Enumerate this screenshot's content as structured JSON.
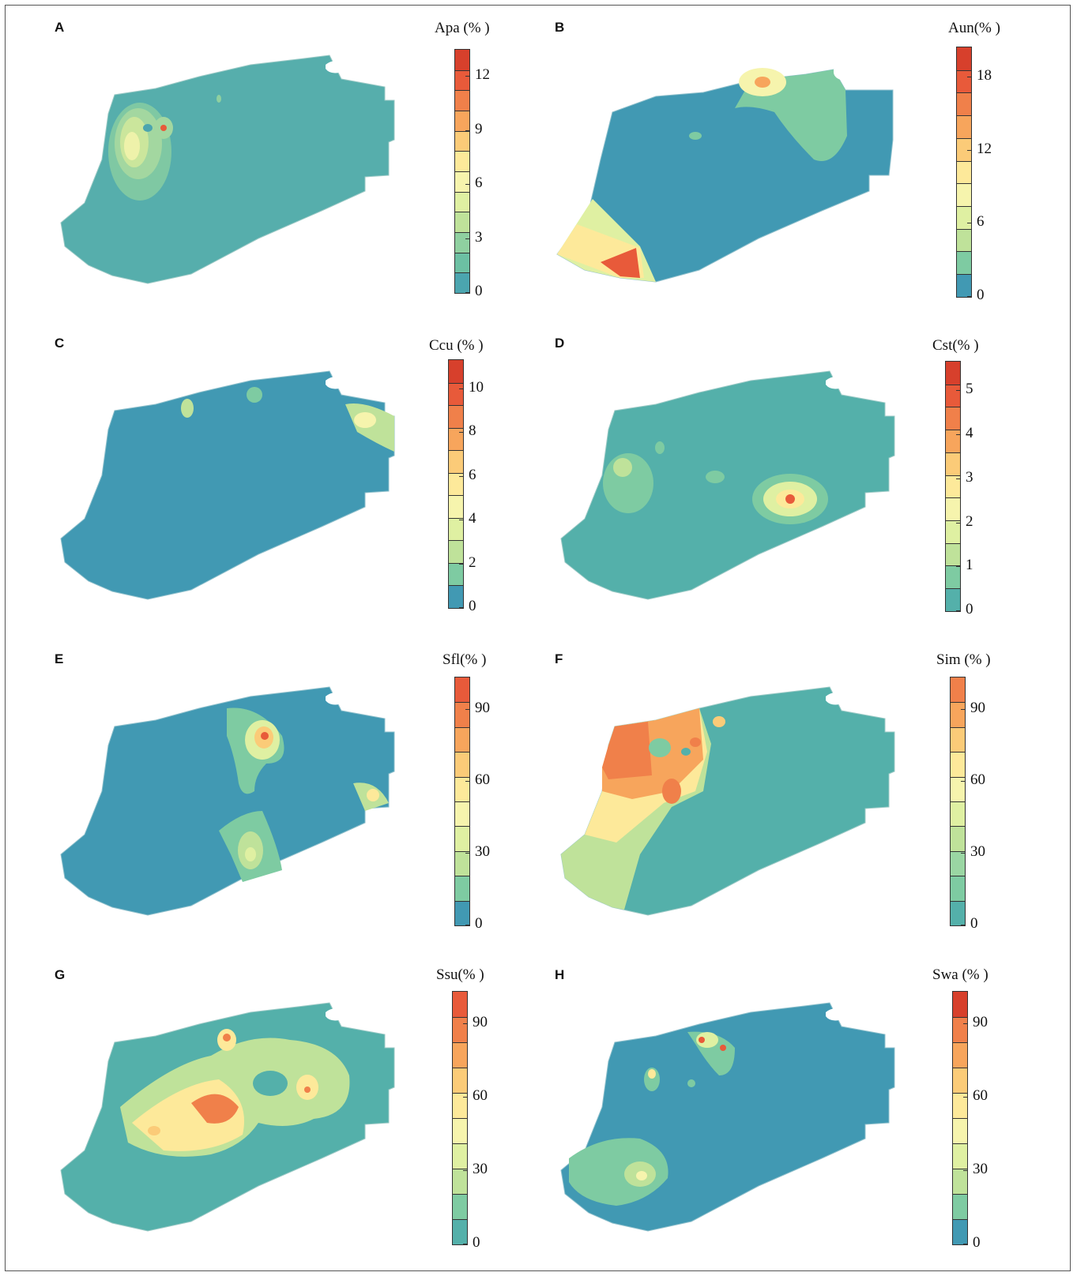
{
  "panels": [
    {
      "id": "A",
      "title": "Apa (% )",
      "ticks": [
        "12",
        "9",
        "6",
        "3",
        "0"
      ],
      "bins": 12,
      "colors": [
        "#d7402c",
        "#e85a3a",
        "#f0804a",
        "#f7a55c",
        "#fbcb78",
        "#fde99a",
        "#f6f4ad",
        "#dff0a2",
        "#bfe29a",
        "#8fd0a0",
        "#6cc0a3",
        "#4ba5af"
      ]
    },
    {
      "id": "B",
      "title": "Aun(% )",
      "ticks": [
        "18",
        "12",
        "6",
        "0"
      ],
      "bins": 11,
      "colors": [
        "#d7402c",
        "#e85a3a",
        "#f0804a",
        "#f7a55c",
        "#fbcb78",
        "#fde99a",
        "#f6f4ad",
        "#dff0a2",
        "#bfe29a",
        "#7ecba2",
        "#4199b3"
      ]
    },
    {
      "id": "C",
      "title": "Ccu (% )",
      "ticks": [
        "10",
        "8",
        "6",
        "4",
        "2",
        "0"
      ],
      "bins": 11,
      "colors": [
        "#d7402c",
        "#e85a3a",
        "#f0804a",
        "#f7a55c",
        "#fbcb78",
        "#fde99a",
        "#f6f4ad",
        "#dff0a2",
        "#bfe29a",
        "#7ecba2",
        "#4199b3"
      ]
    },
    {
      "id": "D",
      "title": "Cst(% )",
      "ticks": [
        "5",
        "4",
        "3",
        "2",
        "1",
        "0"
      ],
      "bins": 11,
      "colors": [
        "#d7402c",
        "#e85a3a",
        "#f0804a",
        "#f7a55c",
        "#fbcb78",
        "#fde99a",
        "#f6f4ad",
        "#dff0a2",
        "#bfe29a",
        "#7ecba2",
        "#54b0aa"
      ]
    },
    {
      "id": "E",
      "title": "Sfl(% )",
      "ticks": [
        "90",
        "60",
        "30",
        "0"
      ],
      "bins": 10,
      "colors": [
        "#e85a3a",
        "#f0804a",
        "#f7a55c",
        "#fbcb78",
        "#fde99a",
        "#f6f4ad",
        "#dff0a2",
        "#bfe29a",
        "#7ecba2",
        "#4199b3"
      ]
    },
    {
      "id": "F",
      "title": "Sim (% )",
      "ticks": [
        "90",
        "60",
        "30",
        "0"
      ],
      "bins": 10,
      "colors": [
        "#f0804a",
        "#f7a55c",
        "#fbcb78",
        "#fde99a",
        "#f6f4ad",
        "#dff0a2",
        "#bfe29a",
        "#9ad6a3",
        "#7ecba2",
        "#54b0aa"
      ]
    },
    {
      "id": "G",
      "title": "Ssu(% )",
      "ticks": [
        "90",
        "60",
        "30",
        "0"
      ],
      "bins": 10,
      "colors": [
        "#e85a3a",
        "#f0804a",
        "#f7a55c",
        "#fbcb78",
        "#fde99a",
        "#f6f4ad",
        "#dff0a2",
        "#bfe29a",
        "#7ecba2",
        "#54b0aa"
      ]
    },
    {
      "id": "H",
      "title": "Swa (% )",
      "ticks": [
        "90",
        "60",
        "30",
        "0"
      ],
      "bins": 10,
      "colors": [
        "#d7402c",
        "#f0804a",
        "#f7a55c",
        "#fbcb78",
        "#fde99a",
        "#f6f4ad",
        "#dff0a2",
        "#bfe29a",
        "#7ecba2",
        "#4199b3"
      ]
    }
  ]
}
